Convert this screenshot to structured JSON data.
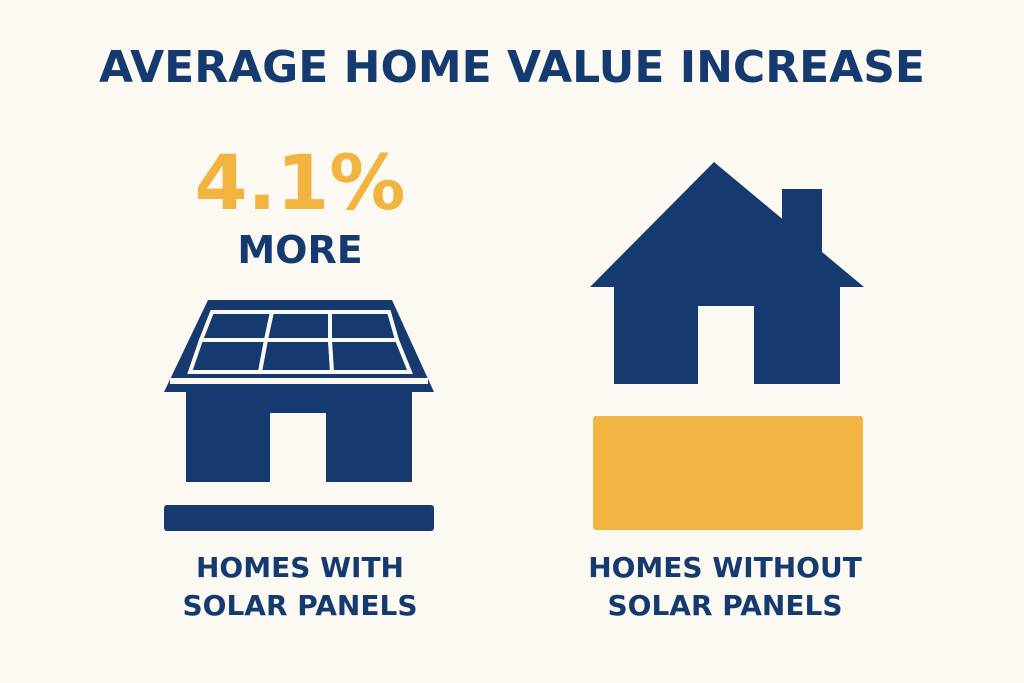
{
  "title": "AVERAGE HOME VALUE INCREASE",
  "stat": {
    "value": "4.1%",
    "label": "MORE"
  },
  "left": {
    "caption_line1": "HOMES WITH",
    "caption_line2": "SOLAR PANELS",
    "icon": "solar-house-icon"
  },
  "right": {
    "caption_line1": "HOMES WITHOUT",
    "caption_line2": "SOLAR PANELS",
    "icon": "house-icon"
  },
  "colors": {
    "background": "#FBF9F1",
    "navy": "#143A6F",
    "gold": "#F2B441"
  }
}
